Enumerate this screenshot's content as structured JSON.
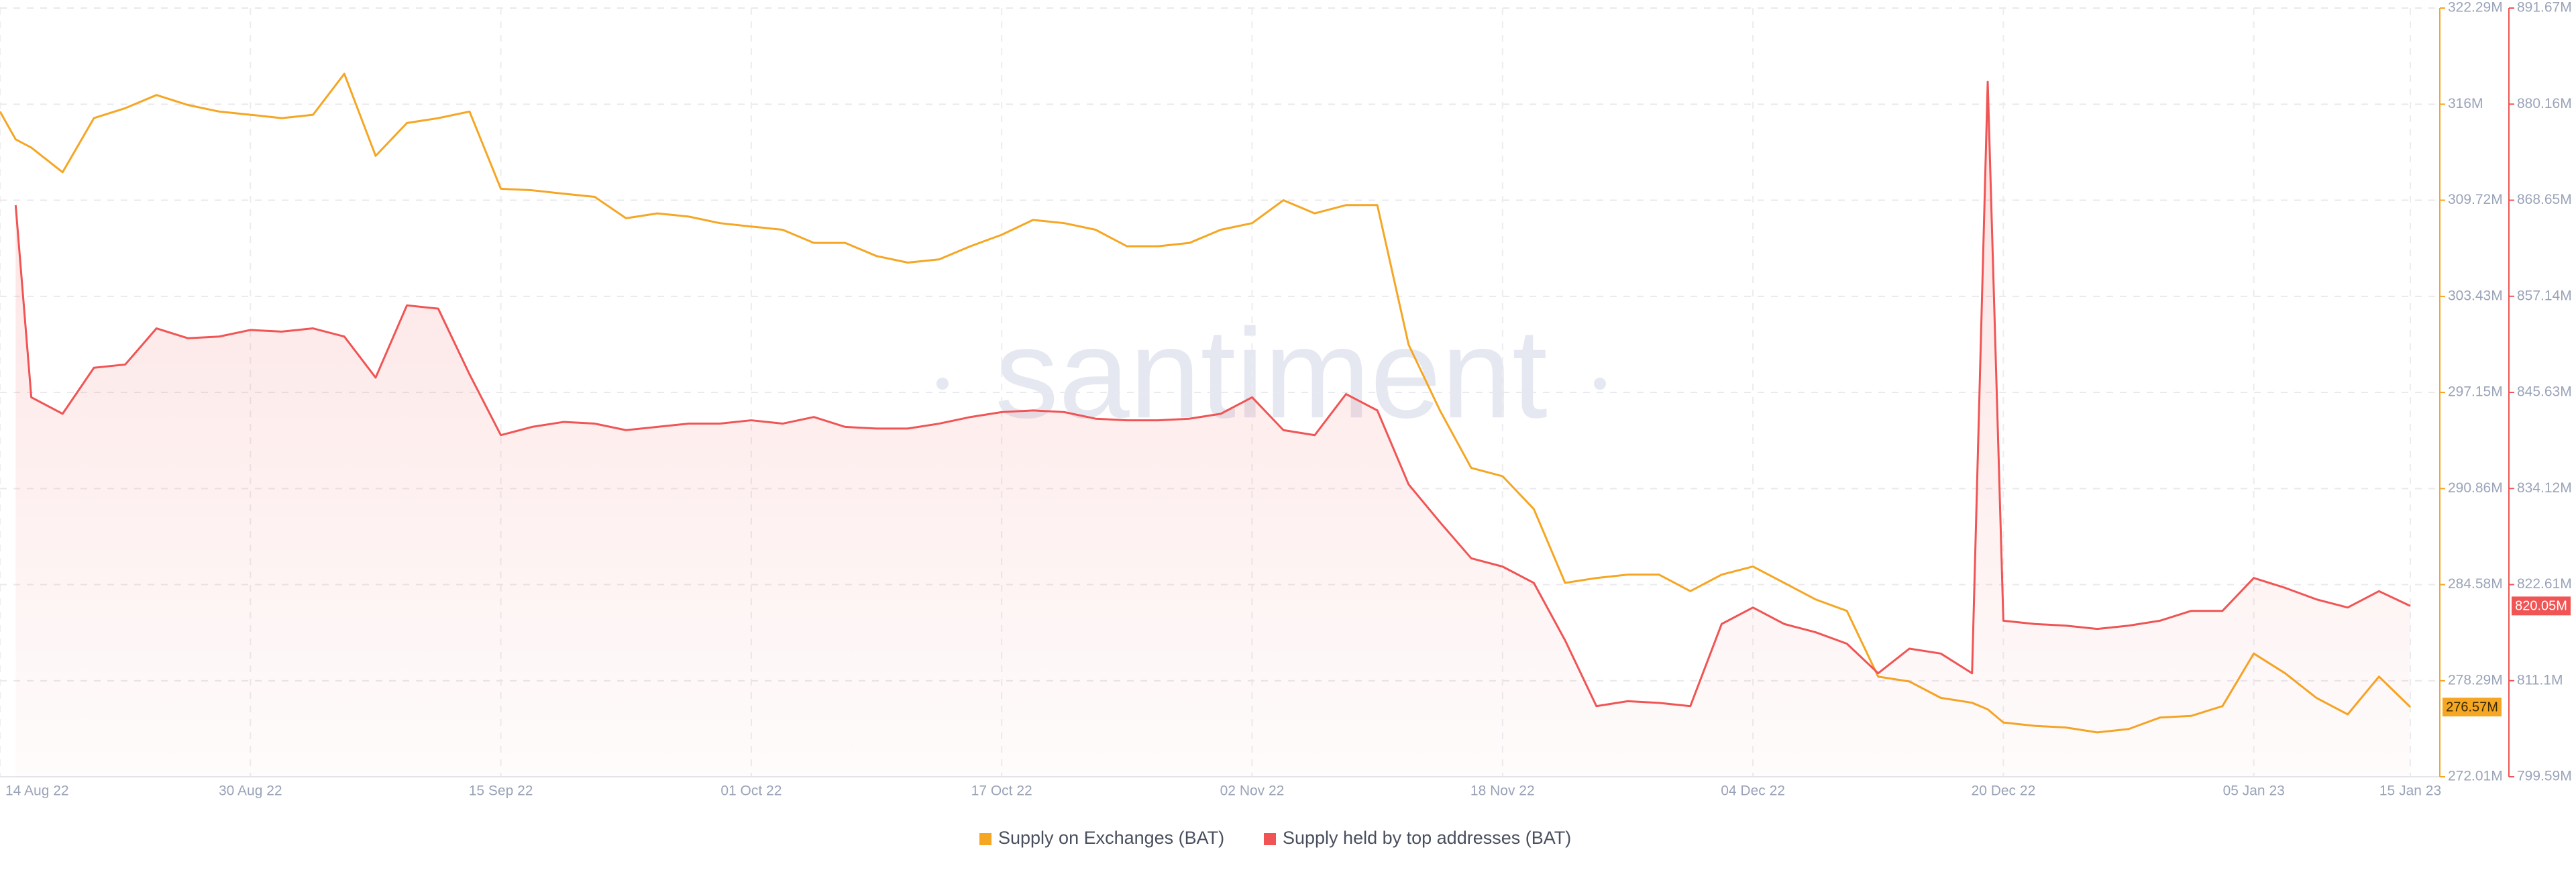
{
  "chart_data": {
    "type": "line",
    "watermark": "santiment",
    "x": [
      "2022-08-14",
      "2022-08-15",
      "2022-08-16",
      "2022-08-18",
      "2022-08-20",
      "2022-08-22",
      "2022-08-24",
      "2022-08-26",
      "2022-08-28",
      "2022-08-30",
      "2022-09-01",
      "2022-09-03",
      "2022-09-05",
      "2022-09-07",
      "2022-09-09",
      "2022-09-11",
      "2022-09-13",
      "2022-09-15",
      "2022-09-17",
      "2022-09-19",
      "2022-09-21",
      "2022-09-23",
      "2022-09-25",
      "2022-09-27",
      "2022-09-29",
      "2022-10-01",
      "2022-10-03",
      "2022-10-05",
      "2022-10-07",
      "2022-10-09",
      "2022-10-11",
      "2022-10-13",
      "2022-10-15",
      "2022-10-17",
      "2022-10-19",
      "2022-10-21",
      "2022-10-23",
      "2022-10-25",
      "2022-10-27",
      "2022-10-29",
      "2022-10-31",
      "2022-11-02",
      "2022-11-04",
      "2022-11-06",
      "2022-11-08",
      "2022-11-10",
      "2022-11-12",
      "2022-11-14",
      "2022-11-16",
      "2022-11-18",
      "2022-11-20",
      "2022-11-22",
      "2022-11-24",
      "2022-11-26",
      "2022-11-28",
      "2022-11-30",
      "2022-12-02",
      "2022-12-04",
      "2022-12-06",
      "2022-12-08",
      "2022-12-10",
      "2022-12-12",
      "2022-12-14",
      "2022-12-16",
      "2022-12-18",
      "2022-12-19",
      "2022-12-20",
      "2022-12-22",
      "2022-12-24",
      "2022-12-26",
      "2022-12-28",
      "2022-12-30",
      "2023-01-01",
      "2023-01-03",
      "2023-01-05",
      "2023-01-07",
      "2023-01-09",
      "2023-01-11",
      "2023-01-13",
      "2023-01-15"
    ],
    "xlim": [
      "2022-08-14",
      "2023-01-15"
    ],
    "xticks": [
      {
        "value": "2022-08-14",
        "label": "14 Aug 22"
      },
      {
        "value": "2022-08-30",
        "label": "30 Aug 22"
      },
      {
        "value": "2022-09-15",
        "label": "15 Sep 22"
      },
      {
        "value": "2022-10-01",
        "label": "01 Oct 22"
      },
      {
        "value": "2022-10-17",
        "label": "17 Oct 22"
      },
      {
        "value": "2022-11-02",
        "label": "02 Nov 22"
      },
      {
        "value": "2022-11-18",
        "label": "18 Nov 22"
      },
      {
        "value": "2022-12-04",
        "label": "04 Dec 22"
      },
      {
        "value": "2022-12-20",
        "label": "20 Dec 22"
      },
      {
        "value": "2023-01-05",
        "label": "05 Jan 23"
      },
      {
        "value": "2023-01-15",
        "label": "15 Jan 23"
      }
    ],
    "ylim": [
      272010000,
      322290000
    ],
    "yticks": [
      {
        "value": 272010000,
        "label": "272.01M"
      },
      {
        "value": 278290000,
        "label": "278.29M"
      },
      {
        "value": 284580000,
        "label": "284.58M"
      },
      {
        "value": 290860000,
        "label": "290.86M"
      },
      {
        "value": 297150000,
        "label": "297.15M"
      },
      {
        "value": 303430000,
        "label": "303.43M"
      },
      {
        "value": 309720000,
        "label": "309.72M"
      },
      {
        "value": 316000000,
        "label": "316M"
      },
      {
        "value": 322290000,
        "label": "322.29M"
      }
    ],
    "y2lim": [
      799590000,
      891670000
    ],
    "y2ticks": [
      {
        "value": 799590000,
        "label": "799.59M"
      },
      {
        "value": 811100000,
        "label": "811.1M"
      },
      {
        "value": 822610000,
        "label": "822.61M"
      },
      {
        "value": 834120000,
        "label": "834.12M"
      },
      {
        "value": 845630000,
        "label": "845.63M"
      },
      {
        "value": 857140000,
        "label": "857.14M"
      },
      {
        "value": 868650000,
        "label": "868.65M"
      },
      {
        "value": 880160000,
        "label": "880.16M"
      },
      {
        "value": 891670000,
        "label": "891.67M"
      }
    ],
    "grid": true,
    "legend": "bottom",
    "series": [
      {
        "name": "Supply on Exchanges (BAT)",
        "color": "#f5a623",
        "axis": "y",
        "values": [
          315520000,
          313700000,
          313160000,
          311550000,
          315090000,
          315740000,
          316600000,
          315950000,
          315520000,
          315310000,
          315090000,
          315310000,
          317990000,
          312620000,
          314770000,
          315090000,
          315520000,
          310470000,
          310370000,
          310150000,
          309940000,
          308540000,
          308860000,
          308650000,
          308220000,
          308000000,
          307790000,
          306930000,
          306930000,
          306070000,
          305640000,
          305850000,
          306710000,
          307460000,
          308430000,
          308220000,
          307790000,
          306710000,
          306710000,
          306930000,
          307790000,
          308220000,
          309720000,
          308860000,
          309400000,
          309400000,
          300270000,
          295970000,
          292210000,
          291670000,
          289520000,
          284690000,
          285010000,
          285230000,
          285230000,
          284150000,
          285230000,
          285760000,
          284690000,
          283610000,
          282860000,
          278560000,
          278240000,
          277170000,
          276850000,
          276420000,
          275560000,
          275340000,
          275230000,
          274910000,
          275130000,
          275880000,
          275990000,
          276630000,
          280070000,
          278780000,
          277170000,
          276090000,
          278560000,
          276570000
        ],
        "value_labels": [
          null,
          null,
          null,
          null,
          null,
          null,
          null,
          null,
          null,
          null,
          null,
          null,
          null,
          null,
          null,
          null,
          null,
          null,
          null,
          null,
          null,
          null,
          null,
          null,
          null,
          null,
          null,
          null,
          null,
          null,
          null,
          null,
          null,
          null,
          null,
          null,
          null,
          null,
          null,
          null,
          null,
          null,
          null,
          null,
          null,
          null,
          null,
          null,
          null,
          null,
          null,
          null,
          null,
          null,
          null,
          null,
          null,
          null,
          null,
          null,
          null,
          null,
          null,
          null,
          null,
          null,
          null,
          null,
          null,
          null,
          null,
          null,
          null,
          null,
          null,
          null,
          null,
          null,
          null,
          "276.57M"
        ]
      },
      {
        "name": "Supply held by top addresses (BAT)",
        "color": "#f05454",
        "axis": "y2",
        "values": [
          null,
          868060000,
          845040000,
          843070000,
          848580000,
          848970000,
          853300000,
          852120000,
          852320000,
          853110000,
          852910000,
          853300000,
          852320000,
          847400000,
          856060000,
          855660000,
          847790000,
          840510000,
          841500000,
          842090000,
          841890000,
          841110000,
          841500000,
          841890000,
          841890000,
          842290000,
          841890000,
          842680000,
          841500000,
          841300000,
          841300000,
          841890000,
          842680000,
          843270000,
          843470000,
          843270000,
          842480000,
          842290000,
          842290000,
          842480000,
          843070000,
          845040000,
          841110000,
          840510000,
          845430000,
          843470000,
          834610000,
          830090000,
          825760000,
          824770000,
          822810000,
          815920000,
          808050000,
          808640000,
          808440000,
          808050000,
          817890000,
          819860000,
          817890000,
          816900000,
          815530000,
          811990000,
          814940000,
          814350000,
          811990000,
          882820000,
          818280000,
          817890000,
          817690000,
          817300000,
          817690000,
          818280000,
          819460000,
          819460000,
          823400000,
          822220000,
          820840000,
          819860000,
          821820000,
          820050000
        ],
        "value_labels": [
          null,
          null,
          null,
          null,
          null,
          null,
          null,
          null,
          null,
          null,
          null,
          null,
          null,
          null,
          null,
          null,
          null,
          null,
          null,
          null,
          null,
          null,
          null,
          null,
          null,
          null,
          null,
          null,
          null,
          null,
          null,
          null,
          null,
          null,
          null,
          null,
          null,
          null,
          null,
          null,
          null,
          null,
          null,
          null,
          null,
          null,
          null,
          null,
          null,
          null,
          null,
          null,
          null,
          null,
          null,
          null,
          null,
          null,
          null,
          null,
          null,
          null,
          null,
          null,
          null,
          null,
          null,
          null,
          null,
          null,
          null,
          null,
          null,
          null,
          null,
          null,
          null,
          null,
          null,
          "820.05M"
        ]
      }
    ]
  }
}
